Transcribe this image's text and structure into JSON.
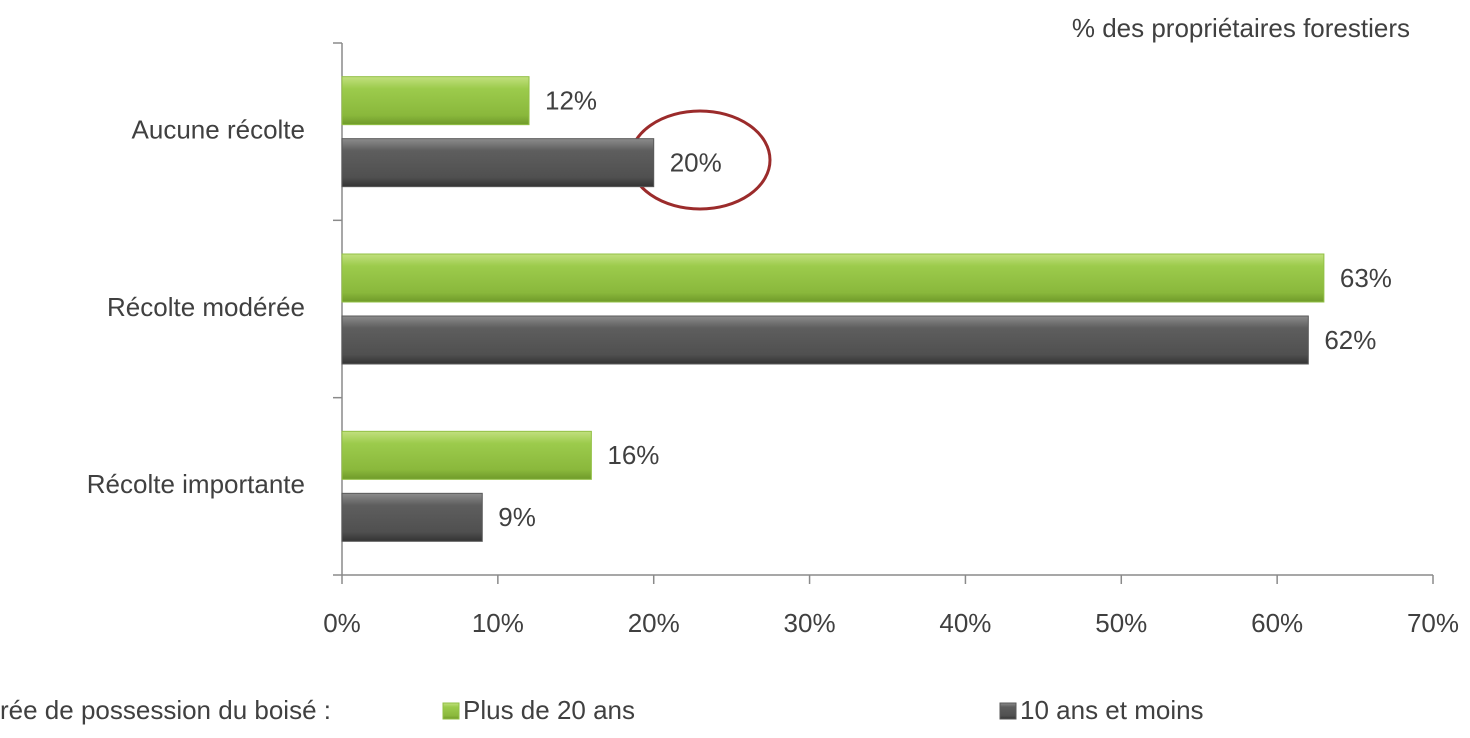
{
  "chart_data": {
    "type": "hbar",
    "subtitle": "% des propriétaires forestiers",
    "legend_title": "rée de possession du boisé :",
    "categories": [
      "Aucune récolte",
      "Récolte modérée",
      "Récolte importante"
    ],
    "series": [
      {
        "name": "Plus de 20 ans",
        "color": "#92c045",
        "values": [
          12,
          63,
          16
        ],
        "value_labels": [
          "12%",
          "63%",
          "16%"
        ]
      },
      {
        "name": "10 ans et moins",
        "color": "#5a5a5a",
        "values": [
          20,
          62,
          9
        ],
        "value_labels": [
          "20%",
          "62%",
          "9%"
        ]
      }
    ],
    "xlim": [
      0,
      70
    ],
    "xticks": [
      {
        "value": 0,
        "label": "0%"
      },
      {
        "value": 10,
        "label": "10%"
      },
      {
        "value": 20,
        "label": "20%"
      },
      {
        "value": 30,
        "label": "30%"
      },
      {
        "value": 40,
        "label": "40%"
      },
      {
        "value": 50,
        "label": "50%"
      },
      {
        "value": 60,
        "label": "60%"
      },
      {
        "value": 70,
        "label": "70%"
      }
    ],
    "legend": "bottom"
  }
}
